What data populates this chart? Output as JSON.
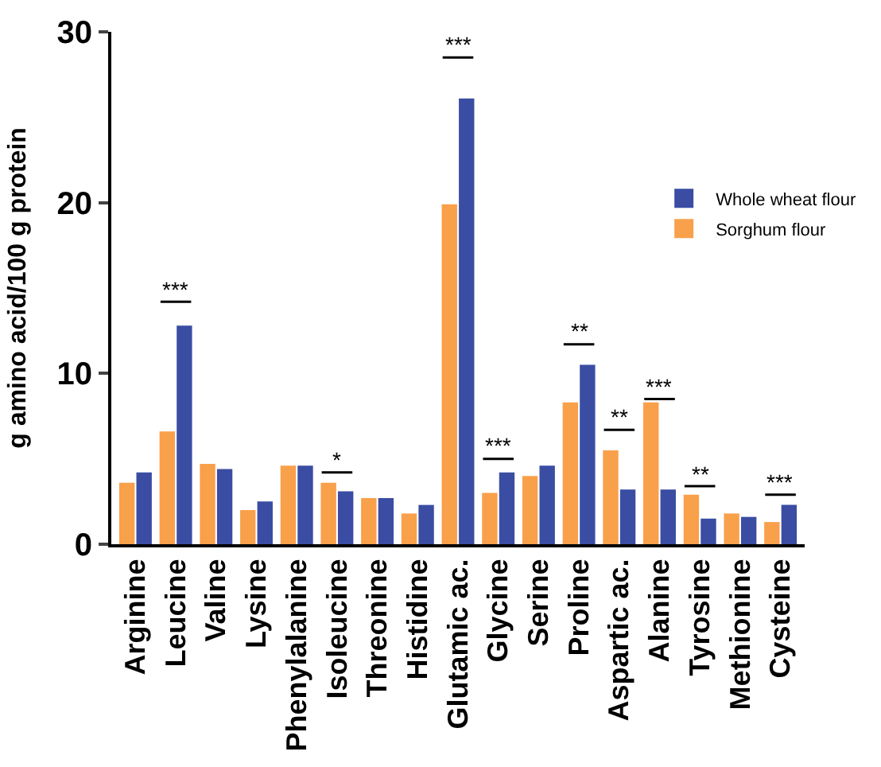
{
  "chart_data": {
    "type": "bar",
    "ylabel": "g amino acid/100 g protein",
    "categories": [
      "Arginine",
      "Leucine",
      "Valine",
      "Lysine",
      "Phenylalanine",
      "Isoleucine",
      "Threonine",
      "Histidine",
      "Glutamic ac.",
      "Glycine",
      "Serine",
      "Proline",
      "Aspartic ac.",
      "Alanine",
      "Tyrosine",
      "Methionine",
      "Cysteine"
    ],
    "series": [
      {
        "name": "Sorghum flour",
        "color": "#f9a04b",
        "values": [
          3.6,
          6.6,
          4.7,
          2.0,
          4.6,
          3.6,
          2.7,
          1.8,
          19.9,
          3.0,
          4.0,
          8.3,
          5.5,
          8.3,
          2.9,
          1.8,
          1.3
        ]
      },
      {
        "name": "Whole wheat flour",
        "color": "#3a4da3",
        "values": [
          4.2,
          12.8,
          4.4,
          2.5,
          4.6,
          3.1,
          2.7,
          2.3,
          26.1,
          4.2,
          4.6,
          10.5,
          3.2,
          3.2,
          1.5,
          1.6,
          2.3
        ]
      }
    ],
    "annotations": [
      "***",
      "*",
      "***",
      "***",
      "**",
      "**",
      "***",
      "**",
      "***"
    ],
    "ylim": [
      0,
      30
    ],
    "yticks": [
      0,
      10,
      20,
      30
    ],
    "legend": "right"
  }
}
